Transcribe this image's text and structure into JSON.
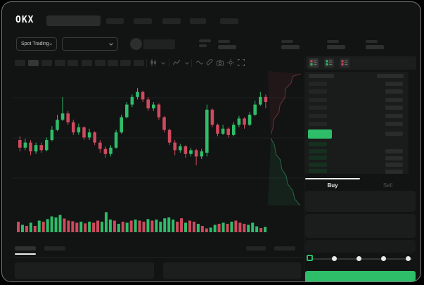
{
  "brand": {
    "logo": "OKX"
  },
  "header": {
    "nav_items": 5
  },
  "subheader": {
    "market_type": {
      "label": "Spot Trading",
      "chevron": "v"
    },
    "pair_dropdown": {
      "chevron": "v"
    }
  },
  "toolbar": {
    "interval_buttons": 10,
    "icons": [
      "candle-style-icon",
      "chevron-down-icon",
      "indicators-icon",
      "chevron-down-icon",
      "wave-icon",
      "draw-icon",
      "camera-icon",
      "settings-icon",
      "fullscreen-icon"
    ]
  },
  "orderbook": {
    "view_modes": [
      "combined-book-icon",
      "bids-book-icon",
      "asks-book-icon"
    ],
    "ask_rows": 6,
    "bid_rows": 5,
    "bid_right_rows": 4
  },
  "trade_panel": {
    "buy_tab": "Buy",
    "sell_tab": "Sell",
    "slider_stops": 5
  },
  "colors": {
    "green": "#2EBD69",
    "red": "#CF4A5E",
    "background": "#121313",
    "panel": "#1A1B1B",
    "placeholder": "#272828",
    "bid_tint": "#16301F",
    "depth_ask_fill": "rgba(150,60,70,0.12)",
    "depth_bid_fill": "rgba(45,150,90,0.12)",
    "depth_ask_line": "#7a3b43",
    "depth_bid_line": "#2f7a55"
  },
  "chart_data": {
    "type": "candlestick",
    "title": "",
    "xlabel": "time (no labels visible)",
    "ylabel": "price (no labels visible)",
    "ylim": [
      0,
      100
    ],
    "grid": "faint horizontal lines",
    "candles_ohlc": [
      [
        50,
        53,
        41,
        44
      ],
      [
        44,
        51,
        42,
        48
      ],
      [
        48,
        50,
        38,
        41
      ],
      [
        41,
        48,
        39,
        46
      ],
      [
        46,
        48,
        40,
        42
      ],
      [
        42,
        52,
        41,
        50
      ],
      [
        50,
        61,
        49,
        58
      ],
      [
        58,
        70,
        57,
        66
      ],
      [
        66,
        84,
        65,
        71
      ],
      [
        71,
        73,
        62,
        64
      ],
      [
        64,
        66,
        54,
        56
      ],
      [
        56,
        63,
        54,
        60
      ],
      [
        60,
        61,
        50,
        52
      ],
      [
        52,
        59,
        50,
        56
      ],
      [
        56,
        57,
        46,
        48
      ],
      [
        48,
        50,
        40,
        43
      ],
      [
        43,
        45,
        36,
        39
      ],
      [
        39,
        46,
        37,
        44
      ],
      [
        44,
        58,
        43,
        56
      ],
      [
        56,
        70,
        55,
        68
      ],
      [
        68,
        80,
        67,
        78
      ],
      [
        78,
        86,
        76,
        84
      ],
      [
        84,
        91,
        82,
        88
      ],
      [
        88,
        89,
        80,
        82
      ],
      [
        82,
        84,
        73,
        75
      ],
      [
        75,
        80,
        73,
        78
      ],
      [
        78,
        79,
        66,
        68
      ],
      [
        68,
        69,
        56,
        58
      ],
      [
        58,
        59,
        46,
        48
      ],
      [
        48,
        50,
        38,
        42
      ],
      [
        42,
        47,
        40,
        45
      ],
      [
        45,
        46,
        36,
        39
      ],
      [
        39,
        44,
        37,
        42
      ],
      [
        42,
        43,
        30,
        37
      ],
      [
        37,
        43,
        35,
        41
      ],
      [
        40,
        78,
        37,
        74
      ],
      [
        74,
        75,
        60,
        62
      ],
      [
        62,
        63,
        53,
        55
      ],
      [
        55,
        62,
        54,
        59
      ],
      [
        59,
        60,
        52,
        54
      ],
      [
        54,
        64,
        53,
        62
      ],
      [
        62,
        69,
        60,
        67
      ],
      [
        67,
        68,
        59,
        62
      ],
      [
        62,
        72,
        61,
        70
      ],
      [
        70,
        81,
        69,
        78
      ],
      [
        78,
        88,
        77,
        84
      ],
      [
        84,
        86,
        75,
        80
      ]
    ],
    "volume_bars": [
      [
        0.5,
        "r"
      ],
      [
        0.35,
        "g"
      ],
      [
        0.3,
        "r"
      ],
      [
        0.45,
        "g"
      ],
      [
        0.3,
        "r"
      ],
      [
        0.55,
        "g"
      ],
      [
        0.5,
        "r"
      ],
      [
        0.62,
        "g"
      ],
      [
        0.75,
        "g"
      ],
      [
        0.7,
        "g"
      ],
      [
        0.82,
        "g"
      ],
      [
        0.65,
        "r"
      ],
      [
        0.55,
        "r"
      ],
      [
        0.52,
        "r"
      ],
      [
        0.45,
        "r"
      ],
      [
        0.5,
        "g"
      ],
      [
        0.42,
        "r"
      ],
      [
        0.5,
        "g"
      ],
      [
        0.45,
        "r"
      ],
      [
        0.55,
        "r"
      ],
      [
        0.5,
        "g"
      ],
      [
        0.95,
        "g"
      ],
      [
        0.6,
        "g"
      ],
      [
        0.55,
        "r"
      ],
      [
        0.4,
        "g"
      ],
      [
        0.5,
        "r"
      ],
      [
        0.45,
        "g"
      ],
      [
        0.55,
        "r"
      ],
      [
        0.6,
        "g"
      ],
      [
        0.55,
        "r"
      ],
      [
        0.5,
        "r"
      ],
      [
        0.62,
        "g"
      ],
      [
        0.55,
        "r"
      ],
      [
        0.6,
        "g"
      ],
      [
        0.5,
        "g"
      ],
      [
        0.66,
        "g"
      ],
      [
        0.7,
        "g"
      ],
      [
        0.6,
        "g"
      ],
      [
        0.5,
        "r"
      ],
      [
        0.66,
        "r"
      ],
      [
        0.45,
        "g"
      ],
      [
        0.55,
        "r"
      ],
      [
        0.5,
        "r"
      ],
      [
        0.4,
        "g"
      ],
      [
        0.3,
        "r"
      ],
      [
        0.18,
        "r"
      ],
      [
        0.22,
        "g"
      ],
      [
        0.35,
        "g"
      ],
      [
        0.4,
        "r"
      ],
      [
        0.45,
        "g"
      ],
      [
        0.4,
        "r"
      ],
      [
        0.5,
        "g"
      ],
      [
        0.55,
        "r"
      ],
      [
        0.45,
        "r"
      ],
      [
        0.4,
        "r"
      ],
      [
        0.35,
        "g"
      ],
      [
        0.45,
        "g"
      ],
      [
        0.28,
        "g"
      ],
      [
        0.2,
        "r"
      ],
      [
        0.25,
        "g"
      ]
    ],
    "depth_overlay": {
      "asks_line": [
        [
          0.08,
          0.47
        ],
        [
          0.14,
          0.42
        ],
        [
          0.16,
          0.36
        ],
        [
          0.3,
          0.31
        ],
        [
          0.33,
          0.25
        ],
        [
          0.46,
          0.2
        ],
        [
          0.49,
          0.13
        ],
        [
          0.63,
          0.09
        ],
        [
          0.68,
          0.04
        ],
        [
          0.9,
          0.02
        ]
      ],
      "bids_line": [
        [
          0.08,
          0.5
        ],
        [
          0.18,
          0.55
        ],
        [
          0.22,
          0.62
        ],
        [
          0.34,
          0.66
        ],
        [
          0.38,
          0.73
        ],
        [
          0.5,
          0.78
        ],
        [
          0.54,
          0.84
        ],
        [
          0.68,
          0.89
        ],
        [
          0.73,
          0.95
        ],
        [
          0.88,
          1.0
        ]
      ]
    }
  }
}
